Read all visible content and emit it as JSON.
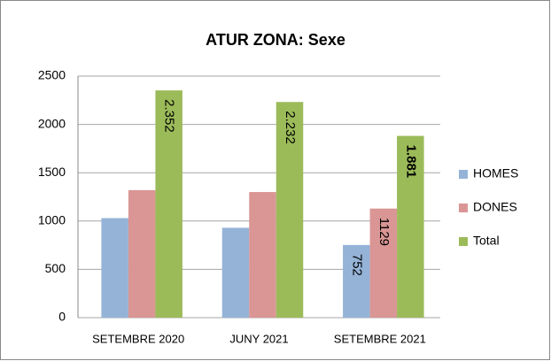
{
  "chart_data": {
    "type": "bar",
    "title": "ATUR ZONA: Sexe",
    "categories": [
      "SETEMBRE 2020",
      "JUNY 2021",
      "SETEMBRE 2021"
    ],
    "series": [
      {
        "name": "HOMES",
        "color": "#95b3d7",
        "values": [
          1030,
          930,
          752
        ],
        "value_labels": [
          null,
          null,
          "752"
        ]
      },
      {
        "name": "DONES",
        "color": "#d99694",
        "values": [
          1320,
          1300,
          1129
        ],
        "value_labels": [
          null,
          null,
          "1129"
        ]
      },
      {
        "name": "Total",
        "color": "#9bbb59",
        "values": [
          2352,
          2232,
          1881
        ],
        "value_labels": [
          "2.352",
          "2.232",
          "1.881"
        ]
      }
    ],
    "ylim": [
      0,
      2500
    ],
    "yticks": [
      0,
      500,
      1000,
      1500,
      2000,
      2500
    ],
    "grid": true,
    "legend": "right"
  }
}
